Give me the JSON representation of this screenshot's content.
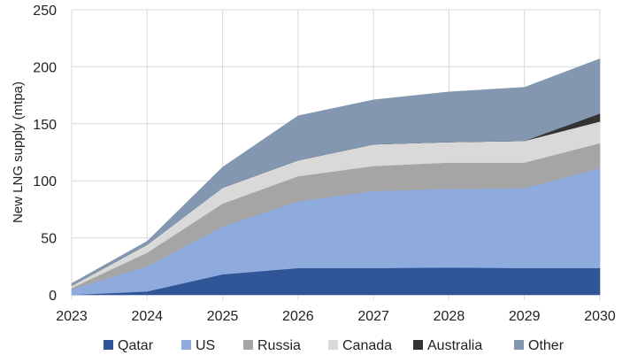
{
  "chart_data": {
    "type": "area",
    "stacked": true,
    "title": "",
    "xlabel": "",
    "ylabel": "New LNG supply (mtpa)",
    "x": [
      "2023",
      "2024",
      "2025",
      "2026",
      "2027",
      "2028",
      "2029",
      "2030"
    ],
    "ylim": [
      0,
      250
    ],
    "yticks": [
      0,
      50,
      100,
      150,
      200,
      250
    ],
    "grid": true,
    "legend_position": "bottom",
    "series": [
      {
        "name": "Qatar",
        "color": "#2f5597",
        "values": [
          0,
          3,
          18,
          23.5,
          23.5,
          24,
          23.5,
          23.5
        ]
      },
      {
        "name": "US",
        "color": "#8faadc",
        "values": [
          5,
          22,
          42,
          58.5,
          67.5,
          69,
          70,
          87.5
        ]
      },
      {
        "name": "Russia",
        "color": "#a5a5a5",
        "values": [
          1,
          12,
          20,
          22,
          22,
          23,
          22.5,
          22
        ]
      },
      {
        "name": "Canada",
        "color": "#d9d9d9",
        "values": [
          2,
          7,
          14,
          14,
          19,
          18,
          19,
          19
        ]
      },
      {
        "name": "Australia",
        "color": "#333333",
        "values": [
          0,
          0,
          0,
          0,
          0,
          0,
          0,
          7
        ]
      },
      {
        "name": "Other",
        "color": "#8497b0",
        "values": [
          2,
          3,
          18,
          39,
          39,
          44,
          47,
          48
        ]
      }
    ]
  }
}
